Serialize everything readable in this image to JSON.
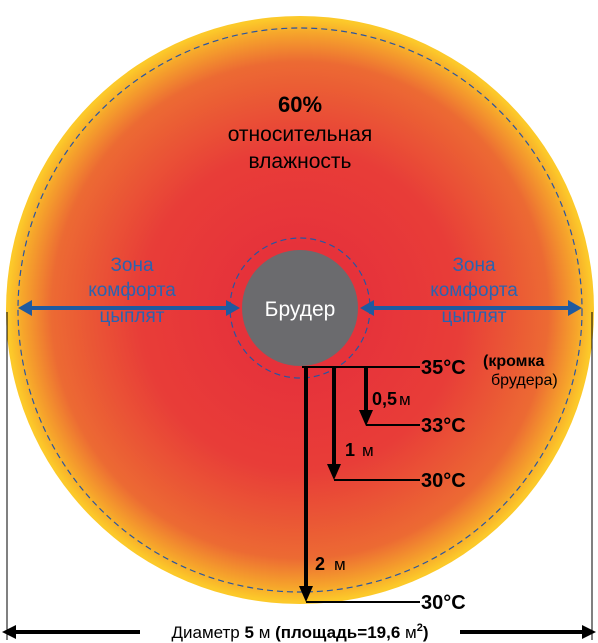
{
  "humidity": {
    "value": "60%",
    "line1": "относительная",
    "line2": "влажность"
  },
  "comfort_zone": {
    "line1": "Зона",
    "line2": "комфорта",
    "line3": "цыплят"
  },
  "brooder": {
    "label": "Брудер"
  },
  "temperatures": {
    "edge": "35°C",
    "edge_note_1": "(кромка",
    "edge_note_2": "брудера)",
    "at_05m": "33°C",
    "at_1m": "30°C",
    "at_2m": "30°C"
  },
  "distances": {
    "d05_value": "0,5",
    "d1_value": "1",
    "d2_value": "2",
    "unit": "м"
  },
  "diameter": {
    "prefix": "Диаметр ",
    "value": "5",
    "unit": " м",
    "area_open": "(площадь=",
    "area_value": "19,6",
    "area_unit": " м",
    "area_sup": "2",
    "area_close": ")"
  },
  "colors": {
    "ring": "#fbb424",
    "inner": "#e5333a",
    "brooder": "#6b6b6e",
    "arrow_blue": "#1f5aa0",
    "text_blue": "#2a63b0"
  }
}
